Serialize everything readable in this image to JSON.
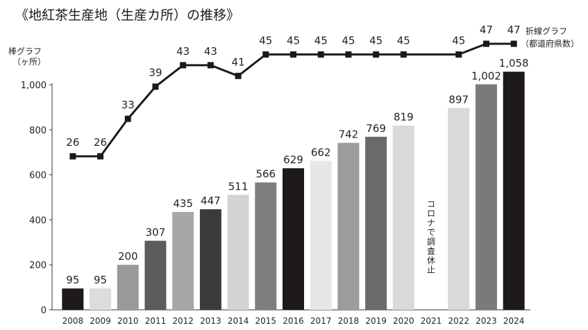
{
  "chart_data": {
    "type": "bar",
    "title": "《地紅茶生産地（生産カ所）の推移》",
    "bar_axis_label": [
      "棒グラフ",
      "（ヶ所）"
    ],
    "line_axis_label": [
      "折線グラフ",
      "（都道府県数）"
    ],
    "categories": [
      "2008",
      "2009",
      "2010",
      "2011",
      "2012",
      "2013",
      "2014",
      "2015",
      "2016",
      "2017",
      "2018",
      "2019",
      "2020",
      "2021",
      "2022",
      "2023",
      "2024"
    ],
    "bar_values": [
      95,
      95,
      200,
      307,
      435,
      447,
      511,
      566,
      629,
      662,
      742,
      769,
      819,
      null,
      897,
      1002,
      1058
    ],
    "bar_labels": [
      "95",
      "95",
      "200",
      "307",
      "435",
      "447",
      "511",
      "566",
      "629",
      "662",
      "742",
      "769",
      "819",
      "",
      "897",
      "1,002",
      "1,058"
    ],
    "bar_colors": [
      "#1f1a1a",
      "#dcdcdc",
      "#9a9a9a",
      "#5c5c5c",
      "#a7a7a7",
      "#3b3b3b",
      "#d3d3d3",
      "#7e7e7e",
      "#1f1a1a",
      "#e7e7e7",
      "#9c9c9c",
      "#6a6a6a",
      "#d9d9d9",
      "#ffffff",
      "#d9d9d9",
      "#7a7a7a",
      "#1f1a1a"
    ],
    "line_values": [
      26,
      26,
      33,
      39,
      43,
      43,
      41,
      45,
      45,
      45,
      45,
      45,
      45,
      null,
      45,
      47,
      47
    ],
    "line_labels": [
      "26",
      "26",
      "33",
      "39",
      "43",
      "43",
      "41",
      "45",
      "45",
      "45",
      "45",
      "45",
      "45",
      "",
      "45",
      "47",
      "47"
    ],
    "yticks": [
      "0",
      "200",
      "400",
      "600",
      "800",
      "1,000"
    ],
    "ytick_values": [
      0,
      200,
      400,
      600,
      800,
      1000
    ],
    "ylim": [
      0,
      1000
    ],
    "note_2021": "コロナで調査休止",
    "line_color": "#1a1a1a"
  }
}
